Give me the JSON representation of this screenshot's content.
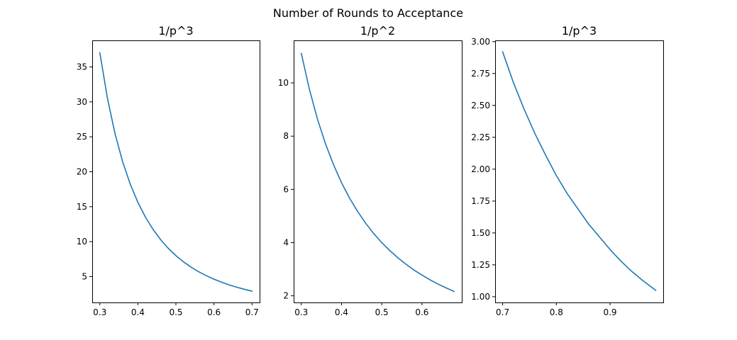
{
  "figure": {
    "suptitle": "Number of Rounds to Acceptance"
  },
  "chart_data": [
    {
      "type": "line",
      "title": "1/p^3",
      "xlabel": "",
      "ylabel": "",
      "xlim": [
        0.28,
        0.72
      ],
      "ylim": [
        1.3,
        38.8
      ],
      "xticks": [
        0.3,
        0.4,
        0.5,
        0.6,
        0.7
      ],
      "xtick_labels": [
        "0.3",
        "0.4",
        "0.5",
        "0.6",
        "0.7"
      ],
      "yticks": [
        5,
        10,
        15,
        20,
        25,
        30,
        35
      ],
      "ytick_labels": [
        "5",
        "10",
        "15",
        "20",
        "25",
        "30",
        "35"
      ],
      "x": [
        0.3,
        0.32,
        0.34,
        0.36,
        0.38,
        0.4,
        0.42,
        0.44,
        0.46,
        0.48,
        0.5,
        0.52,
        0.54,
        0.56,
        0.58,
        0.6,
        0.62,
        0.64,
        0.66,
        0.68,
        0.7
      ],
      "series": [
        {
          "values": [
            37.04,
            30.52,
            25.44,
            21.43,
            18.22,
            15.63,
            13.5,
            11.74,
            10.27,
            9.04,
            8.0,
            7.11,
            6.35,
            5.69,
            5.13,
            4.63,
            4.2,
            3.81,
            3.48,
            3.18,
            2.92
          ],
          "color": "#1f77b4"
        }
      ],
      "grid": false,
      "legend": "none"
    },
    {
      "type": "line",
      "title": "1/p^2",
      "xlabel": "",
      "ylabel": "",
      "xlim": [
        0.281,
        0.699
      ],
      "ylim": [
        1.75,
        11.6
      ],
      "xticks": [
        0.3,
        0.4,
        0.5,
        0.6
      ],
      "xtick_labels": [
        "0.3",
        "0.4",
        "0.5",
        "0.6"
      ],
      "yticks": [
        2,
        4,
        6,
        8,
        10
      ],
      "ytick_labels": [
        "2",
        "4",
        "6",
        "8",
        "10"
      ],
      "x": [
        0.3,
        0.32,
        0.34,
        0.36,
        0.38,
        0.4,
        0.42,
        0.44,
        0.46,
        0.48,
        0.5,
        0.52,
        0.54,
        0.56,
        0.58,
        0.6,
        0.62,
        0.64,
        0.66,
        0.68
      ],
      "series": [
        {
          "values": [
            11.11,
            9.77,
            8.65,
            7.72,
            6.93,
            6.25,
            5.67,
            5.17,
            4.73,
            4.34,
            4.0,
            3.7,
            3.43,
            3.19,
            2.97,
            2.78,
            2.6,
            2.44,
            2.3,
            2.16
          ],
          "color": "#1f77b4"
        }
      ],
      "grid": false,
      "legend": "none"
    },
    {
      "type": "line",
      "title": "1/p^3",
      "xlabel": "",
      "ylabel": "",
      "xlim": [
        0.686,
        0.999
      ],
      "ylim": [
        0.955,
        3.01
      ],
      "xticks": [
        0.7,
        0.8,
        0.9
      ],
      "xtick_labels": [
        "0.7",
        "0.8",
        "0.9"
      ],
      "yticks": [
        1.0,
        1.25,
        1.5,
        1.75,
        2.0,
        2.25,
        2.5,
        2.75,
        3.0
      ],
      "ytick_labels": [
        "1.00",
        "1.25",
        "1.50",
        "1.75",
        "2.00",
        "2.25",
        "2.50",
        "2.75",
        "3.00"
      ],
      "x": [
        0.7,
        0.72,
        0.74,
        0.76,
        0.78,
        0.8,
        0.82,
        0.84,
        0.86,
        0.88,
        0.9,
        0.92,
        0.94,
        0.96,
        0.985
      ],
      "series": [
        {
          "values": [
            2.92,
            2.68,
            2.47,
            2.28,
            2.11,
            1.95,
            1.81,
            1.69,
            1.57,
            1.47,
            1.37,
            1.28,
            1.2,
            1.13,
            1.05
          ],
          "color": "#1f77b4"
        }
      ],
      "grid": false,
      "legend": "none"
    }
  ]
}
